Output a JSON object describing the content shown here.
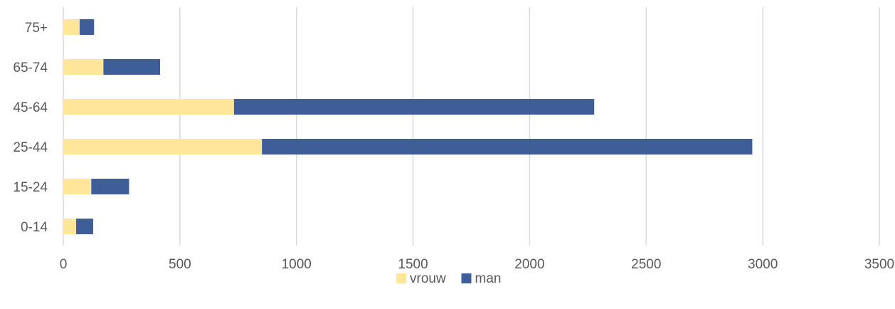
{
  "chart_data": {
    "type": "bar",
    "orientation": "horizontal",
    "stacked": true,
    "title": "",
    "xlabel": "",
    "ylabel": "",
    "categories": [
      "0-14",
      "15-24",
      "25-44",
      "45-64",
      "65-74",
      "75+"
    ],
    "series": [
      {
        "name": "vrouw",
        "color": "#FFE699",
        "values": [
          55,
          120,
          852,
          732,
          172,
          70
        ]
      },
      {
        "name": "man",
        "color": "#3F5E99",
        "values": [
          73,
          162,
          2103,
          1545,
          243,
          62
        ]
      }
    ],
    "xlim": [
      0,
      3500
    ],
    "xticks": [
      "0",
      "500",
      "1000",
      "1500",
      "2000",
      "2500",
      "3000",
      "3500"
    ],
    "grid": true,
    "legend_position": "bottom-center"
  }
}
